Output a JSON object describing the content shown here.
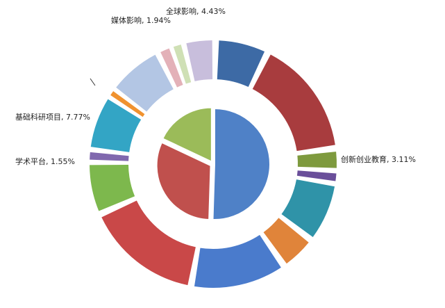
{
  "chart_data": {
    "type": "pie",
    "title": "",
    "inner": {
      "values": [
        50.5,
        31.5,
        18.0
      ],
      "colors": [
        "#4f81c7",
        "#c0504d",
        "#9bbb59"
      ]
    },
    "outer": {
      "values": [
        7.26,
        16.4,
        3.11,
        1.6,
        8.38,
        5.03,
        13.13,
        16.2,
        7.26,
        1.55,
        7.77,
        1.0,
        7.82,
        1.94,
        1.62,
        4.43
      ],
      "colors": [
        "#3d6aa5",
        "#a83c3e",
        "#7e9a3e",
        "#6a4f9a",
        "#2f93a8",
        "#e0843a",
        "#4a7bcc",
        "#c94848",
        "#7db84d",
        "#8068ae",
        "#33a5c5",
        "#f0922f",
        "#b3c6e4",
        "#e3b1b8",
        "#cfe0b5",
        "#c8bedc"
      ],
      "labels": [
        {
          "index": 2,
          "text": "创新创业教育, 3.11%"
        },
        {
          "index": 9,
          "text": "学术平台, 1.55%"
        },
        {
          "index": 10,
          "text": "基础科研项目, 7.77%"
        },
        {
          "index": 13,
          "text": "媒体影响, 1.94%"
        },
        {
          "index": 15,
          "text": "全球影响, 4.43%"
        }
      ]
    }
  }
}
